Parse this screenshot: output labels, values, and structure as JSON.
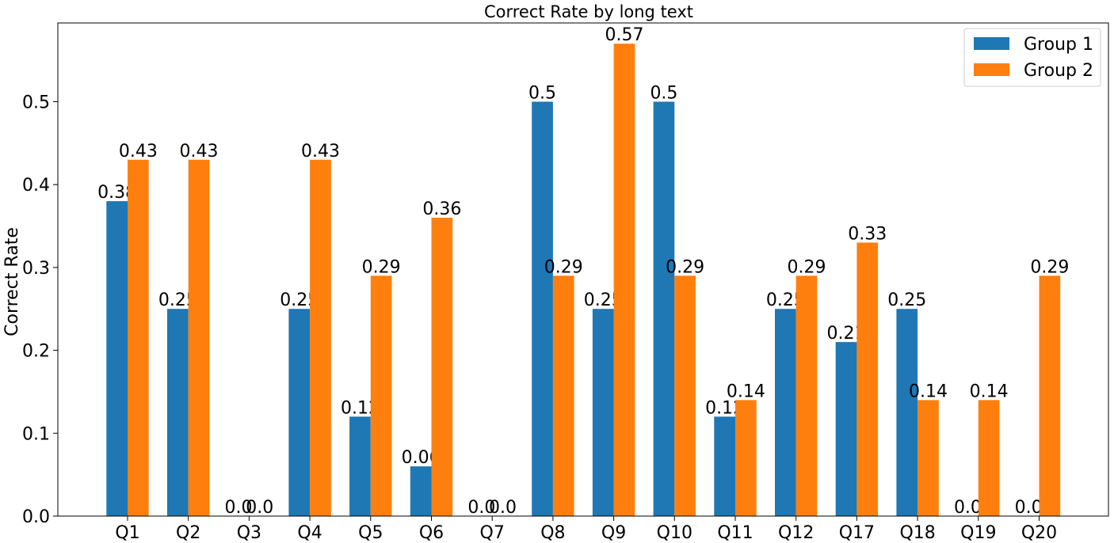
{
  "chart_data": {
    "type": "bar",
    "title": "Correct Rate by long text",
    "xlabel": "",
    "ylabel": "Correct Rate",
    "ylim": [
      0,
      0.595
    ],
    "yticks": [
      "0.0",
      "0.1",
      "0.2",
      "0.3",
      "0.4",
      "0.5"
    ],
    "categories": [
      "Q1",
      "Q2",
      "Q3",
      "Q4",
      "Q5",
      "Q6",
      "Q7",
      "Q8",
      "Q9",
      "Q10",
      "Q11",
      "Q12",
      "Q17",
      "Q18",
      "Q19",
      "Q20"
    ],
    "series": [
      {
        "name": "Group 1",
        "color": "#1f77b4",
        "values": [
          0.38,
          0.25,
          0.0,
          0.25,
          0.12,
          0.06,
          0.0,
          0.5,
          0.25,
          0.5,
          0.12,
          0.25,
          0.21,
          0.25,
          0.0,
          0.0
        ],
        "labels": [
          "0.38",
          "0.25",
          "0.0",
          "0.25",
          "0.12",
          "0.06",
          "0.0",
          "0.5",
          "0.25",
          "0.5",
          "0.12",
          "0.25",
          "0.21",
          "0.25",
          "0.0",
          "0.0"
        ]
      },
      {
        "name": "Group 2",
        "color": "#ff7f0e",
        "values": [
          0.43,
          0.43,
          0.0,
          0.43,
          0.29,
          0.36,
          0.0,
          0.29,
          0.57,
          0.29,
          0.14,
          0.29,
          0.33,
          0.14,
          0.14,
          0.29
        ],
        "labels": [
          "0.43",
          "0.43",
          "0.0",
          "0.43",
          "0.29",
          "0.36",
          "0.0",
          "0.29",
          "0.57",
          "0.29",
          "0.14",
          "0.29",
          "0.33",
          "0.14",
          "0.14",
          "0.29"
        ]
      }
    ],
    "grid": false,
    "legend_position": "top-right"
  }
}
